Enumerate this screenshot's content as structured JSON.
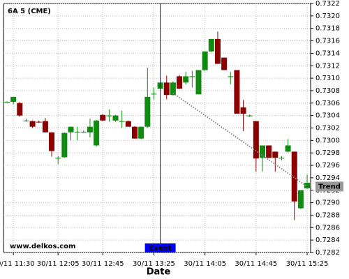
{
  "chart_data": {
    "type": "candlestick",
    "title": "6A 5 (CME)",
    "x_label": "Date",
    "watermark": "www.delkos.com",
    "categories": [
      null,
      "30/11 11:30",
      null,
      null,
      null,
      null,
      null,
      null,
      "30/11 12:05",
      null,
      null,
      null,
      null,
      null,
      null,
      "30/11 12:45",
      null,
      null,
      null,
      null,
      null,
      null,
      null,
      "30/11 13:25",
      null,
      null,
      null,
      null,
      null,
      null,
      null,
      "30/11 14:05",
      null,
      null,
      null,
      null,
      null,
      null,
      null,
      "30/11 14:45",
      null,
      null,
      null,
      null,
      null,
      null,
      null,
      "30/11 15:25"
    ],
    "open": [
      0.73062,
      0.73062,
      0.7306,
      0.73032,
      0.73031,
      0.7303,
      0.73031,
      0.73013,
      0.72972,
      0.72973,
      0.73013,
      0.73014,
      0.73014,
      0.73013,
      0.72992,
      0.73041,
      0.7304,
      0.73032,
      0.73031,
      0.73031,
      0.73022,
      0.73003,
      0.73022,
      0.73075,
      0.73083,
      0.73093,
      0.73073,
      0.73103,
      0.73093,
      0.73103,
      0.73074,
      0.73113,
      0.73143,
      0.73163,
      0.73133,
      0.73103,
      0.73113,
      0.73053,
      0.7304,
      0.73031,
      0.72972,
      0.72992,
      0.72982,
      0.72972,
      0.72982,
      0.72982,
      0.72891,
      0.72923
    ],
    "high": [
      0.73063,
      0.7307,
      0.73062,
      0.73035,
      0.73032,
      0.73032,
      0.73036,
      0.73013,
      0.72975,
      0.73013,
      0.73022,
      0.73022,
      0.73016,
      0.73035,
      0.73033,
      0.73043,
      0.7305,
      0.73041,
      0.73048,
      0.73032,
      0.73023,
      0.73022,
      0.73117,
      0.73085,
      0.73093,
      0.73104,
      0.73095,
      0.73105,
      0.7311,
      0.73112,
      0.73113,
      0.73143,
      0.73163,
      0.73175,
      0.73133,
      0.7311,
      0.73113,
      0.73065,
      0.73042,
      0.73031,
      0.72992,
      0.72992,
      0.72982,
      0.72975,
      0.73002,
      0.72982,
      0.7292,
      0.72945
    ],
    "low": [
      0.73061,
      0.73058,
      0.73038,
      0.7303,
      0.7302,
      0.73028,
      0.73013,
      0.72974,
      0.72962,
      0.72972,
      0.73,
      0.73,
      0.73012,
      0.73005,
      0.7299,
      0.73031,
      0.7303,
      0.7303,
      0.7302,
      0.73022,
      0.73003,
      0.73002,
      0.7302,
      0.73066,
      0.73082,
      0.73066,
      0.73072,
      0.73083,
      0.7309,
      0.73085,
      0.73074,
      0.73112,
      0.73142,
      0.73123,
      0.73113,
      0.7309,
      0.73043,
      0.73015,
      0.73038,
      0.7295,
      0.7295,
      0.72972,
      0.7295,
      0.72968,
      0.72981,
      0.72872,
      0.7289,
      0.72922
    ],
    "close": [
      0.73062,
      0.7307,
      0.7304,
      0.73032,
      0.73022,
      0.73029,
      0.73013,
      0.72983,
      0.72972,
      0.73012,
      0.73022,
      0.73014,
      0.73014,
      0.73022,
      0.73032,
      0.73032,
      0.7304,
      0.7304,
      0.73031,
      0.73022,
      0.73003,
      0.73022,
      0.7307,
      0.73075,
      0.73093,
      0.73073,
      0.73093,
      0.73083,
      0.73103,
      0.73103,
      0.73113,
      0.73143,
      0.73163,
      0.73123,
      0.73113,
      0.73103,
      0.73043,
      0.73043,
      0.7304,
      0.72971,
      0.72992,
      0.72972,
      0.72972,
      0.72972,
      0.72992,
      0.72902,
      0.7292,
      0.72932
    ],
    "up_color": "#108a10",
    "down_color": "#8b0000",
    "ylim": [
      0.7282,
      0.7322
    ],
    "yticks": [
      0.7282,
      0.7284,
      0.7286,
      0.7288,
      {
        "value": 0.729,
        "label": "0.7290"
      },
      0.7292,
      0.7294,
      0.7296,
      0.7298,
      {
        "value": 0.73,
        "label": "0.7300"
      },
      0.7302,
      0.7304,
      0.7306,
      0.7308,
      {
        "value": 0.731,
        "label": "0.7310"
      },
      0.7312,
      0.7314,
      0.7316,
      0.7318,
      {
        "value": 0.732,
        "label": "0.7320"
      },
      0.7322
    ],
    "grid": true,
    "event": {
      "label": "Event",
      "index": 24,
      "color": "#0000ff"
    },
    "trend": {
      "label": "Trend",
      "start_index": 26,
      "start_value": 0.73076,
      "end_index": 47,
      "end_value": 0.72926
    }
  }
}
